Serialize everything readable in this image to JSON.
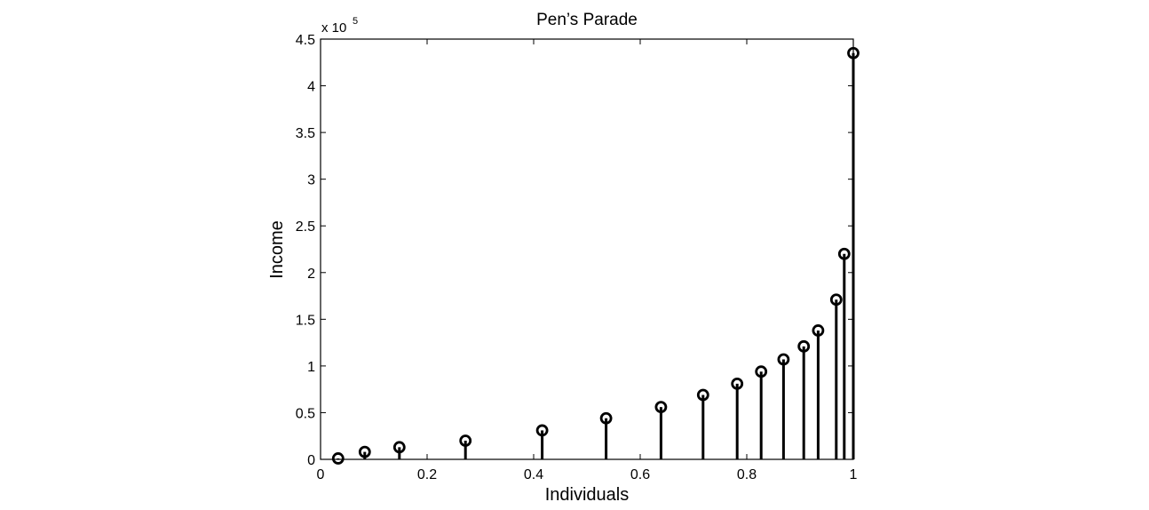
{
  "chart_data": {
    "type": "stem",
    "title": "Pen’s Parade",
    "xlabel": "Individuals",
    "ylabel": "Income",
    "y_multiplier": "x 10",
    "y_multiplier_exponent": "5",
    "xlim": [
      0,
      1
    ],
    "ylim": [
      0,
      4.5
    ],
    "xticks": [
      "0",
      "0.2",
      "0.4",
      "0.6",
      "0.8",
      "1"
    ],
    "yticks": [
      "0",
      "0.5",
      "1",
      "1.5",
      "2",
      "2.5",
      "3",
      "3.5",
      "4",
      "4.5"
    ],
    "grid": false,
    "series": [
      {
        "x": [
          0.033,
          0.083,
          0.148,
          0.272,
          0.416,
          0.536,
          0.639,
          0.718,
          0.782,
          0.827,
          0.869,
          0.907,
          0.934,
          0.968,
          0.983,
          1.0
        ],
        "y": [
          0.01,
          0.08,
          0.13,
          0.2,
          0.31,
          0.44,
          0.56,
          0.69,
          0.81,
          0.94,
          1.07,
          1.21,
          1.38,
          1.71,
          2.2,
          4.35
        ]
      }
    ]
  }
}
